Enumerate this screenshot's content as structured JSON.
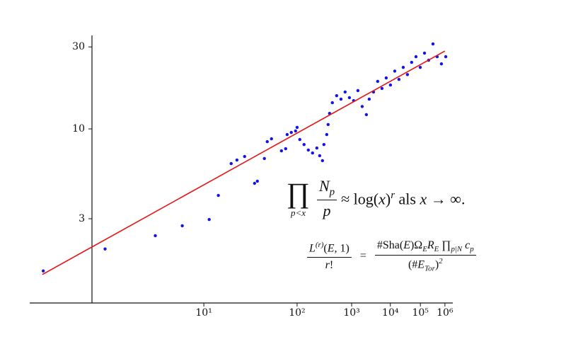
{
  "chart_data": {
    "type": "scatter",
    "xscale": "loglog",
    "yscale": "log",
    "xlim": [
      1.88,
      2300000
    ],
    "ylim": [
      0.97,
      35
    ],
    "xticks": [
      {
        "value": 10,
        "label": "10¹"
      },
      {
        "value": 100,
        "label": "10²"
      },
      {
        "value": 1000,
        "label": "10³"
      },
      {
        "value": 10000,
        "label": "10⁴"
      },
      {
        "value": 100000,
        "label": "10⁵"
      },
      {
        "value": 1000000,
        "label": "10⁶"
      }
    ],
    "yticks": [
      3,
      10,
      30
    ],
    "series": [
      {
        "color": "#1414e6",
        "x": [
          2.01,
          3.02,
          4.98,
          7.11,
          10.98,
          13.0,
          28.7,
          30.8,
          16.8,
          19.0,
          22.6,
          37.0,
          40.0,
          45.0,
          60.3,
          68.7,
          72.0,
          82.3,
          100,
          94.9,
          109.8,
          127.7,
          149.4,
          175,
          207,
          232,
          260,
          276,
          311,
          330,
          351,
          397,
          482,
          590,
          720,
          892,
          1107,
          1388,
          1755,
          2221,
          2618,
          3379,
          4363,
          5727,
          7555,
          10060,
          13570,
          18320,
          25200,
          34700,
          48500,
          68900,
          98700,
          143000,
          207000,
          309000,
          461000,
          702000,
          1090000
        ],
        "values": [
          1.49,
          2.0,
          2.39,
          2.73,
          2.97,
          4.1,
          4.82,
          4.96,
          6.28,
          6.59,
          6.91,
          6.72,
          8.43,
          8.76,
          7.45,
          7.67,
          9.27,
          9.54,
          10.2,
          9.72,
          8.67,
          8.11,
          7.53,
          7.24,
          7.74,
          6.98,
          6.53,
          8.11,
          9.27,
          10.6,
          12.3,
          14.2,
          15.6,
          14.9,
          16.4,
          15.2,
          14.6,
          16.7,
          13.5,
          12.1,
          14.9,
          16.4,
          18.9,
          17.2,
          19.8,
          18.0,
          21.7,
          19.4,
          22.8,
          20.7,
          24.4,
          26.3,
          22.8,
          27.6,
          25.1,
          31.2,
          26.3,
          23.9,
          26.3
        ]
      },
      {
        "type": "line",
        "color": "#e61414",
        "x": [
          2.0,
          1000000
        ],
        "values": [
          1.42,
          28.4
        ]
      }
    ],
    "annotations": [
      {
        "op": "∏",
        "under": "p<x",
        "num": [
          {
            "t": "N"
          },
          {
            "sub": "p"
          }
        ],
        "den": [
          {
            "t": "p"
          }
        ],
        "rest": [
          {
            "rm": " ≈ log("
          },
          {
            "t": "x"
          },
          {
            "rm": ")"
          },
          {
            "sup": "r"
          },
          {
            "rm": " als "
          },
          {
            "t": "x"
          },
          {
            "rm": " → ∞."
          }
        ]
      },
      {
        "num": [
          {
            "t": "L"
          },
          {
            "sup": "(r)"
          },
          {
            "rm": "("
          },
          {
            "t": "E"
          },
          {
            "rm": ", 1)"
          }
        ],
        "den": [
          {
            "t": "r"
          },
          {
            "rm": "!"
          }
        ],
        "eq": "=",
        "num2": [
          {
            "rm": "#Sha("
          },
          {
            "t": "E"
          },
          {
            "rm": ")Ω"
          },
          {
            "sub": "E"
          },
          {
            "t": "R"
          },
          {
            "sub": "E"
          },
          {
            "rm": " ∏"
          },
          {
            "sub": "p|N"
          },
          {
            "t": " c"
          },
          {
            "sub": "p"
          }
        ],
        "den2": [
          {
            "rm": "(#"
          },
          {
            "t": "E"
          },
          {
            "sub": "Tor"
          },
          {
            "rm": ")"
          },
          {
            "sup": "2"
          }
        ]
      }
    ]
  }
}
